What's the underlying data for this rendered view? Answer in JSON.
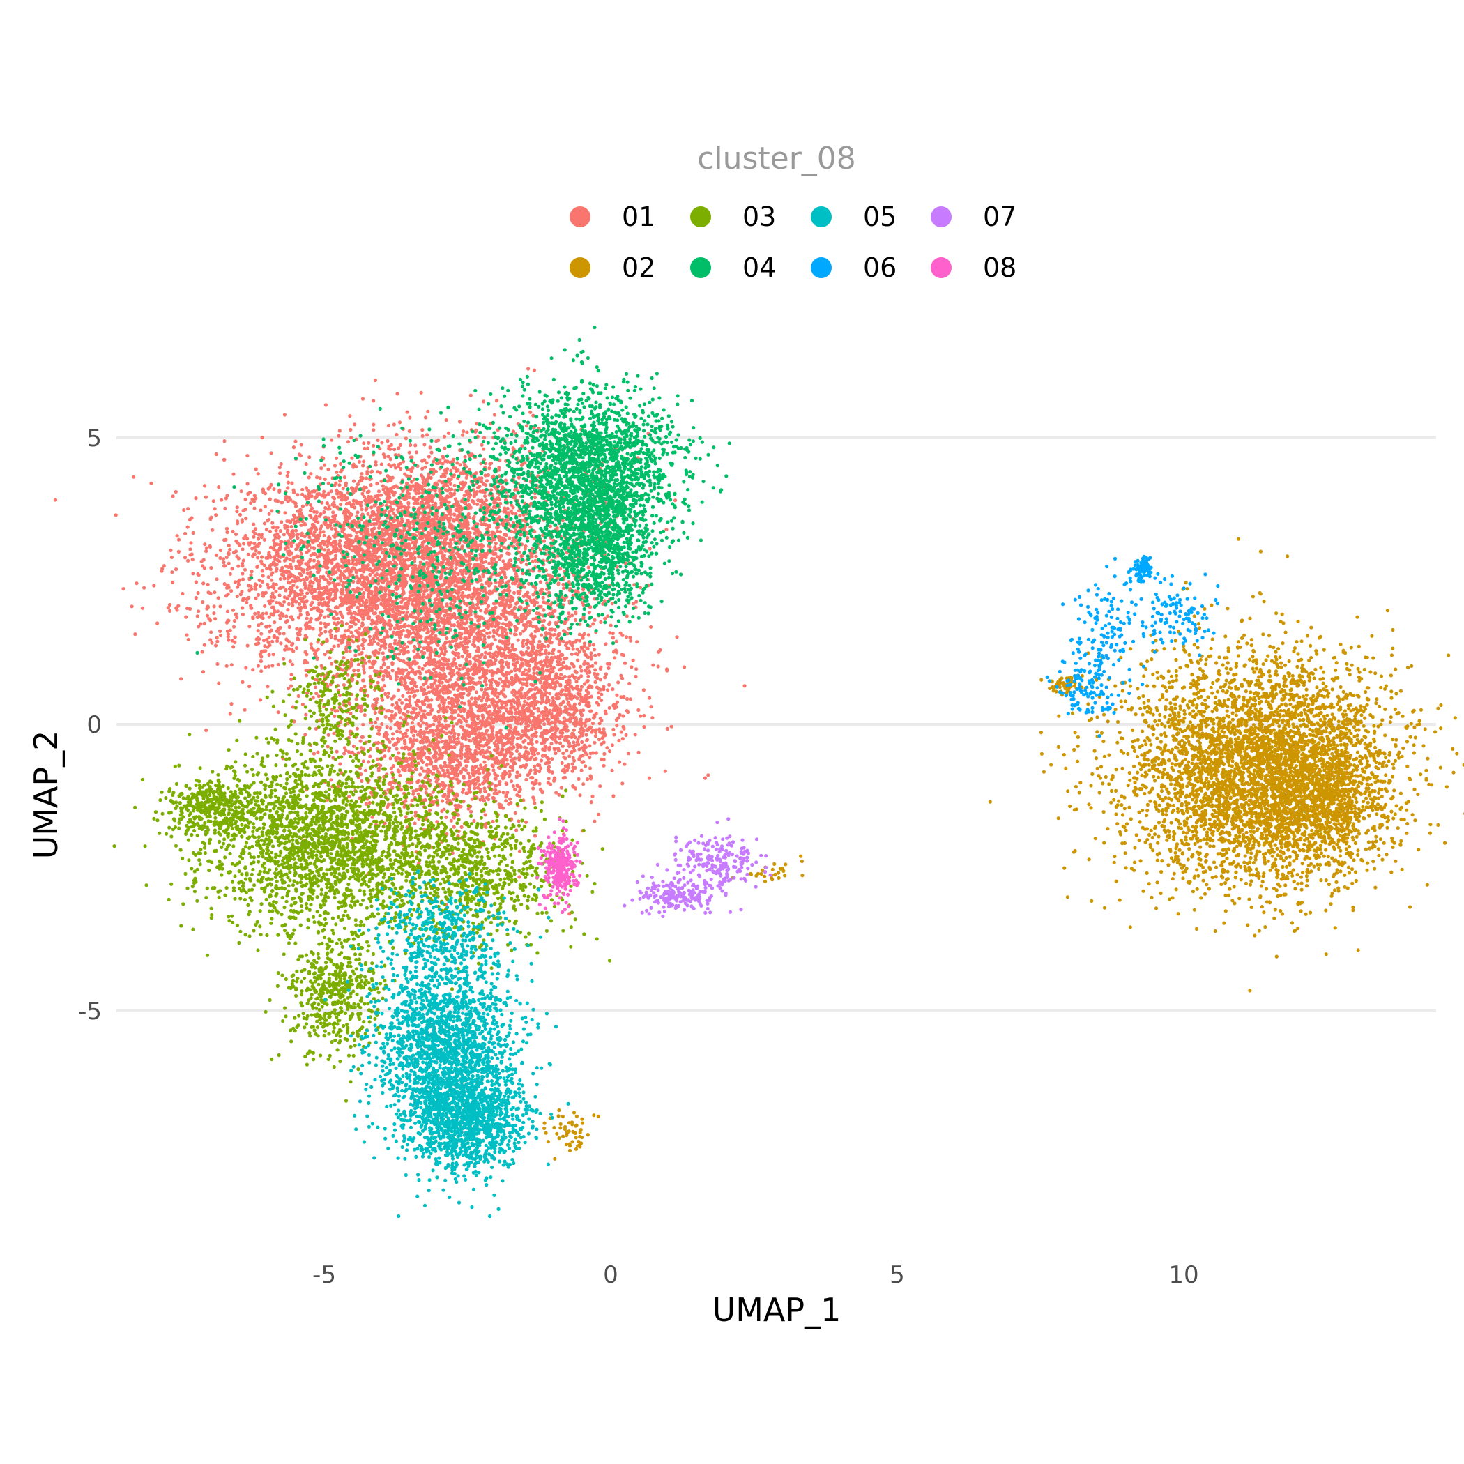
{
  "chart_data": {
    "type": "scatter",
    "title": "",
    "xlabel": "UMAP_1",
    "ylabel": "UMAP_2",
    "xlim": [
      -9.2,
      14.6
    ],
    "ylim": [
      -8.9,
      6.1
    ],
    "x_ticks": [
      -5,
      0,
      5,
      10
    ],
    "y_ticks": [
      5,
      0,
      -5
    ],
    "x_tick_labels": [
      "-5",
      "0",
      "5",
      "10"
    ],
    "y_tick_labels": [
      "5",
      "0",
      "-5"
    ],
    "grid": "horizontal major lines only",
    "legend": {
      "title": "cluster_08",
      "placement": "top",
      "rows": 2
    },
    "series": [
      {
        "name": "01",
        "color": "#F8766D",
        "n": 9000,
        "regions": [
          {
            "cx": -4.5,
            "cy": 2.6,
            "sx": 1.3,
            "sy": 0.9,
            "w": 0.3
          },
          {
            "cx": -2.4,
            "cy": 1.5,
            "sx": 1.2,
            "sy": 1.3,
            "w": 0.35
          },
          {
            "cx": -3.2,
            "cy": 3.6,
            "sx": 1.0,
            "sy": 0.7,
            "w": 0.15
          },
          {
            "cx": -2.8,
            "cy": -0.5,
            "sx": 0.9,
            "sy": 0.6,
            "w": 0.12
          },
          {
            "cx": -1.0,
            "cy": 0.3,
            "sx": 0.6,
            "sy": 0.6,
            "w": 0.08
          }
        ]
      },
      {
        "name": "02",
        "color": "#CD9600",
        "n": 5200,
        "regions": [
          {
            "cx": 11.3,
            "cy": -0.8,
            "sx": 1.2,
            "sy": 1.0,
            "w": 0.8
          },
          {
            "cx": 12.3,
            "cy": -1.1,
            "sx": 0.6,
            "sy": 0.7,
            "w": 0.15
          },
          {
            "cx": 7.9,
            "cy": 0.7,
            "sx": 0.15,
            "sy": 0.08,
            "w": 0.01
          },
          {
            "cx": -0.7,
            "cy": -7.1,
            "sx": 0.2,
            "sy": 0.2,
            "w": 0.01
          },
          {
            "cx": 2.8,
            "cy": -2.6,
            "sx": 0.3,
            "sy": 0.08,
            "w": 0.005
          }
        ]
      },
      {
        "name": "03",
        "color": "#7CAE00",
        "n": 4200,
        "regions": [
          {
            "cx": -5.0,
            "cy": -2.0,
            "sx": 1.1,
            "sy": 0.8,
            "w": 0.55
          },
          {
            "cx": -7.0,
            "cy": -1.4,
            "sx": 0.35,
            "sy": 0.25,
            "w": 0.08
          },
          {
            "cx": -4.8,
            "cy": -4.7,
            "sx": 0.4,
            "sy": 0.5,
            "w": 0.12
          },
          {
            "cx": -2.5,
            "cy": -2.6,
            "sx": 0.9,
            "sy": 0.6,
            "w": 0.2
          },
          {
            "cx": -4.8,
            "cy": 0.5,
            "sx": 0.4,
            "sy": 0.5,
            "w": 0.05
          }
        ]
      },
      {
        "name": "04",
        "color": "#00BE67",
        "n": 3600,
        "regions": [
          {
            "cx": -0.4,
            "cy": 4.4,
            "sx": 0.8,
            "sy": 0.7,
            "w": 0.6
          },
          {
            "cx": -0.3,
            "cy": 3.0,
            "sx": 0.5,
            "sy": 0.6,
            "w": 0.25
          },
          {
            "cx": -3.0,
            "cy": 3.2,
            "sx": 1.2,
            "sy": 1.0,
            "w": 0.15
          }
        ]
      },
      {
        "name": "05",
        "color": "#00BFC4",
        "n": 3400,
        "regions": [
          {
            "cx": -2.9,
            "cy": -5.6,
            "sx": 0.6,
            "sy": 0.8,
            "w": 0.55
          },
          {
            "cx": -2.5,
            "cy": -6.9,
            "sx": 0.5,
            "sy": 0.45,
            "w": 0.35
          },
          {
            "cx": -3.0,
            "cy": -3.5,
            "sx": 0.6,
            "sy": 0.4,
            "w": 0.1
          }
        ]
      },
      {
        "name": "06",
        "color": "#00A9FF",
        "n": 420,
        "regions": [
          {
            "cx": 9.3,
            "cy": 2.7,
            "sx": 0.1,
            "sy": 0.1,
            "w": 0.2
          },
          {
            "cx": 8.6,
            "cy": 1.5,
            "sx": 0.3,
            "sy": 0.55,
            "w": 0.35
          },
          {
            "cx": 9.9,
            "cy": 1.9,
            "sx": 0.35,
            "sy": 0.35,
            "w": 0.25
          },
          {
            "cx": 8.3,
            "cy": 0.6,
            "sx": 0.25,
            "sy": 0.25,
            "w": 0.2
          }
        ]
      },
      {
        "name": "07",
        "color": "#C77CFF",
        "n": 380,
        "regions": [
          {
            "cx": 1.9,
            "cy": -2.4,
            "sx": 0.35,
            "sy": 0.25,
            "w": 0.5
          },
          {
            "cx": 1.2,
            "cy": -3.0,
            "sx": 0.35,
            "sy": 0.15,
            "w": 0.5
          }
        ]
      },
      {
        "name": "08",
        "color": "#FF61CC",
        "n": 260,
        "regions": [
          {
            "cx": -0.9,
            "cy": -2.5,
            "sx": 0.15,
            "sy": 0.3,
            "w": 1.0
          }
        ]
      }
    ]
  }
}
